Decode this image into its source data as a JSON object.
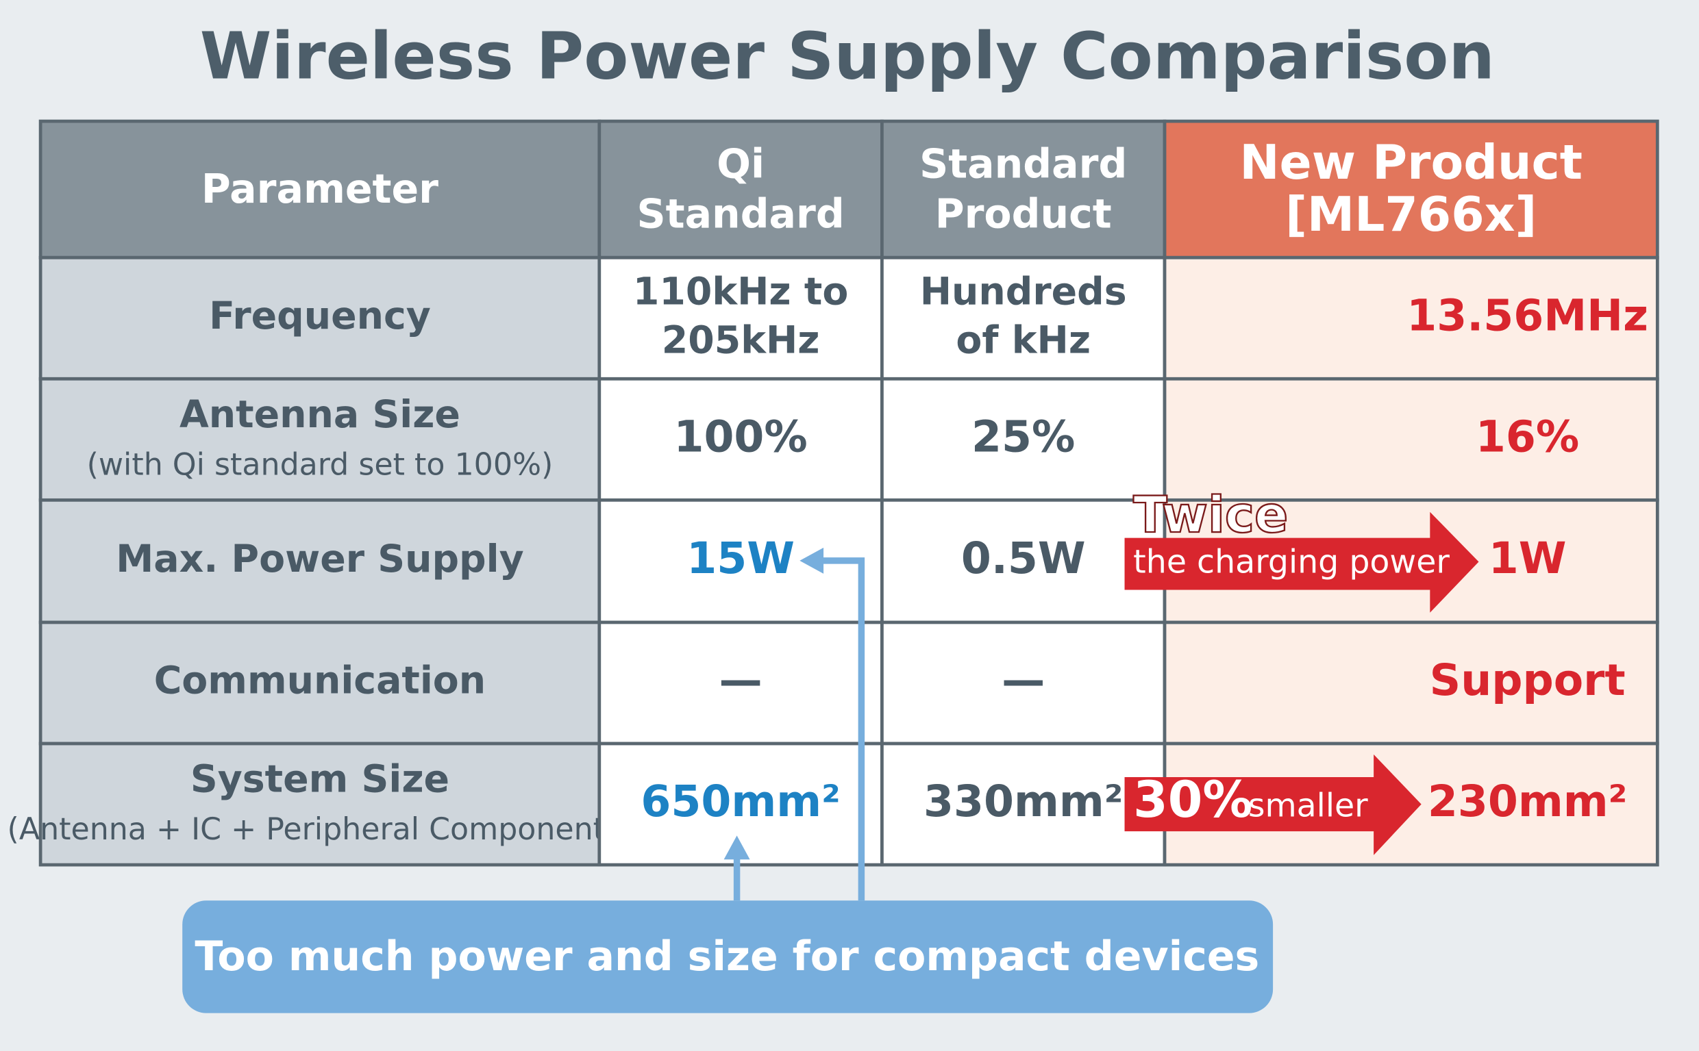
{
  "title": "Wireless Power Supply Comparison",
  "table": {
    "header": [
      [
        "Parameter"
      ],
      [
        "Qi",
        "Standard"
      ],
      [
        "Standard",
        "Product"
      ],
      [
        "New Product",
        "[ML766x]"
      ]
    ],
    "rows": [
      [
        [
          "Frequency"
        ],
        [
          "110kHz to",
          "205kHz"
        ],
        [
          "Hundreds",
          "of kHz"
        ],
        [
          "13.56MHz"
        ]
      ],
      [
        [
          "Antenna Size",
          "(with Qi standard set to 100%)"
        ],
        [
          "100%"
        ],
        [
          "25%"
        ],
        [
          "16%"
        ]
      ],
      [
        [
          "Max. Power Supply"
        ],
        [
          "15W"
        ],
        [
          "0.5W"
        ],
        [
          "1W"
        ]
      ],
      [
        [
          "Communication"
        ],
        [
          "—"
        ],
        [
          "—"
        ],
        [
          "Support"
        ]
      ],
      [
        [
          "System Size",
          "(Antenna + IC + Peripheral Components)"
        ],
        [
          "650mm²"
        ],
        [
          "330mm²"
        ],
        [
          "230mm²"
        ]
      ]
    ]
  },
  "callouts": {
    "power": [
      "Twice",
      "the charging power"
    ],
    "size": [
      "30%",
      "smaller"
    ]
  },
  "note": "Too much power and size for compact devices"
}
